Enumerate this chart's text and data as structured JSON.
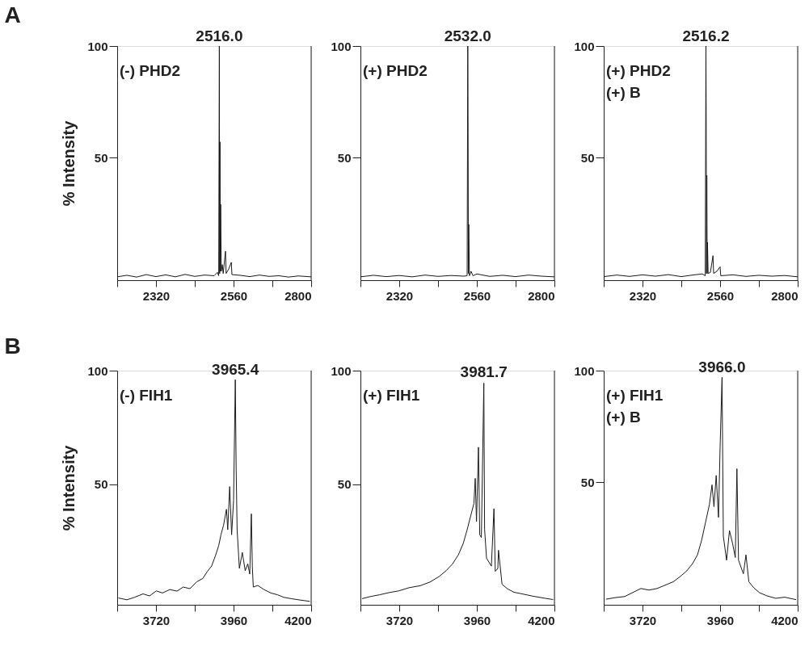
{
  "chart_data": [
    {
      "type": "line",
      "title": "A",
      "ylabel": "% Intensity",
      "xlim": [
        2200,
        2800
      ],
      "ylim": [
        -5,
        100
      ],
      "xticks": [
        {
          "value": 2200,
          "label": null
        },
        2320,
        {
          "value": 2440,
          "label": null
        },
        2560,
        {
          "value": 2680,
          "label": null
        },
        2800
      ],
      "yticks": [
        50,
        100
      ],
      "annotations": [
        "(-) PHD2",
        {
          "text": "2516.0",
          "x": 2516.0,
          "y": 100
        }
      ],
      "series": [
        {
          "color": "#1a1a1a",
          "x": [
            2200,
            2230,
            2260,
            2290,
            2320,
            2350,
            2380,
            2410,
            2440,
            2470,
            2500,
            2510,
            2514,
            2516.0,
            2517,
            2518,
            2519,
            2520,
            2522,
            2525,
            2528,
            2535,
            2537,
            2545,
            2553,
            2555,
            2580,
            2610,
            2640,
            2670,
            2700,
            2730,
            2760,
            2800
          ],
          "values": [
            -3.5,
            -2.8,
            -3.6,
            -2.5,
            -3.4,
            -2.6,
            -3.5,
            -2.4,
            -3.3,
            -2.7,
            -3,
            -1.5,
            -3,
            100,
            -2,
            57,
            -1,
            29,
            -1,
            2,
            -2,
            8,
            -2,
            0,
            3,
            -2.5,
            -2.8,
            -3.4,
            -2.7,
            -3.3,
            -3,
            -3.6,
            -3.1,
            -3.5
          ]
        }
      ]
    },
    {
      "type": "line",
      "xlim": [
        2200,
        2800
      ],
      "ylim": [
        -5,
        100
      ],
      "xticks": [
        {
          "value": 2200,
          "label": null
        },
        2320,
        {
          "value": 2440,
          "label": null
        },
        2560,
        {
          "value": 2680,
          "label": null
        },
        2800
      ],
      "yticks": [
        50,
        100
      ],
      "annotations": [
        "(+) PHD2",
        {
          "text": "2532.0",
          "x": 2532.0,
          "y": 100
        }
      ],
      "series": [
        {
          "color": "#1a1a1a",
          "x": [
            2200,
            2240,
            2280,
            2320,
            2360,
            2400,
            2440,
            2480,
            2520,
            2530,
            2532.0,
            2533,
            2534,
            2535,
            2537,
            2542,
            2548,
            2560,
            2600,
            2640,
            2680,
            2720,
            2760,
            2800
          ],
          "values": [
            -3.5,
            -2.8,
            -3.4,
            -2.9,
            -3.5,
            -2.7,
            -3.3,
            -2.9,
            -3.2,
            -3,
            100,
            61,
            -2,
            20,
            -3,
            -1,
            -3,
            -2.2,
            -3.3,
            -2.8,
            -3.4,
            -2.7,
            -3.2,
            -3.5
          ]
        }
      ]
    },
    {
      "type": "line",
      "xlim": [
        2200,
        2800
      ],
      "ylim": [
        -5,
        100
      ],
      "xticks": [
        {
          "value": 2200,
          "label": null
        },
        2320,
        {
          "value": 2440,
          "label": null
        },
        2560,
        {
          "value": 2680,
          "label": null
        },
        2800
      ],
      "yticks": [
        50,
        100
      ],
      "annotations": [
        "(+) PHD2",
        "(+) B",
        {
          "text": "2516.2",
          "x": 2516.2,
          "y": 100
        }
      ],
      "series": [
        {
          "color": "#1a1a1a",
          "x": [
            2200,
            2240,
            2280,
            2320,
            2360,
            2400,
            2440,
            2480,
            2505,
            2514,
            2516.2,
            2517,
            2518,
            2519,
            2520,
            2521,
            2523,
            2530,
            2538,
            2540,
            2550,
            2560,
            2562,
            2600,
            2640,
            2680,
            2720,
            2760,
            2800
          ],
          "values": [
            -3.4,
            -2.7,
            -3.3,
            -2.6,
            -3.2,
            -2.5,
            -3.4,
            -2.6,
            -2.2,
            -3,
            100,
            68,
            -2,
            42,
            -2,
            12,
            -2,
            -1.5,
            6,
            -2,
            -1,
            1,
            -3,
            -2.6,
            -3.3,
            -2.8,
            -3.2,
            -2.9,
            -3.5
          ]
        }
      ]
    },
    {
      "type": "line",
      "title": "B",
      "ylabel": "% Intensity",
      "xlim": [
        3600,
        4200
      ],
      "ylim": [
        -3,
        100
      ],
      "xticks": [
        {
          "value": 3600,
          "label": null
        },
        3720,
        {
          "value": 3840,
          "label": null
        },
        3960,
        {
          "value": 4080,
          "label": null
        },
        4200
      ],
      "yticks": [
        50,
        100
      ],
      "annotations": [
        "(-) FIH1",
        {
          "text": "3965.4",
          "x": 3965.4,
          "y": 96
        }
      ],
      "series": [
        {
          "color": "#1a1a1a",
          "x": [
            3604,
            3630,
            3654,
            3680,
            3700,
            3721,
            3740,
            3763,
            3785,
            3804,
            3825,
            3846,
            3865,
            3879,
            3892,
            3904,
            3914,
            3921,
            3929,
            3938,
            3942,
            3948,
            3954,
            3960,
            3965.4,
            3968,
            3971,
            3978,
            3987,
            3996,
            4004,
            4010,
            4015,
            4018,
            4021,
            4035,
            4054,
            4075,
            4096,
            4115,
            4138,
            4165,
            4196
          ],
          "values": [
            0,
            -0.8,
            0.3,
            1.8,
            0.9,
            3.1,
            2.2,
            3.7,
            3,
            4.8,
            4.1,
            7.1,
            8.6,
            11.7,
            14,
            18.6,
            23,
            27.8,
            32,
            39,
            30,
            49,
            27.8,
            43,
            96,
            57,
            30,
            13,
            20,
            12,
            15,
            10.5,
            37,
            14,
            4.8,
            5.5,
            3.7,
            2.2,
            1.4,
            0.3,
            -0.3,
            -0.9,
            -1.5
          ]
        }
      ]
    },
    {
      "type": "line",
      "xlim": [
        3600,
        4200
      ],
      "ylim": [
        -3,
        100
      ],
      "xticks": [
        {
          "value": 3600,
          "label": null
        },
        3720,
        {
          "value": 3840,
          "label": null
        },
        3960,
        {
          "value": 4080,
          "label": null
        },
        4200
      ],
      "yticks": [
        50,
        100
      ],
      "annotations": [
        "(+) FIH1",
        {
          "text": "3981.7",
          "x": 3981.7,
          "y": 95
        }
      ],
      "series": [
        {
          "color": "#1a1a1a",
          "x": [
            3605,
            3630,
            3659,
            3690,
            3718,
            3750,
            3785,
            3815,
            3843,
            3865,
            3885,
            3903,
            3918,
            3930,
            3939,
            3951,
            3955,
            3959,
            3965,
            3969,
            3974,
            3981.7,
            3984,
            3990,
            4005,
            4013,
            4017,
            4025,
            4027,
            4038,
            4055,
            4075,
            4100,
            4133,
            4165,
            4196
          ],
          "values": [
            -0.3,
            0.6,
            1.4,
            2.4,
            3.1,
            4.5,
            5.4,
            7,
            9.4,
            12,
            15,
            19,
            24,
            30,
            35,
            41.6,
            52.6,
            33.6,
            66.3,
            27.8,
            26.6,
            94.5,
            30.3,
            17.5,
            14,
            39.3,
            11.7,
            13,
            21,
            6,
            4,
            2.5,
            1.8,
            0.8,
            0,
            -0.7
          ]
        }
      ]
    },
    {
      "type": "line",
      "xlim": [
        3600,
        4200
      ],
      "ylim": [
        -5,
        100
      ],
      "xticks": [
        {
          "value": 3600,
          "label": null
        },
        3720,
        {
          "value": 3840,
          "label": null
        },
        3960,
        {
          "value": 4080,
          "label": null
        },
        4200
      ],
      "yticks": [
        50,
        100
      ],
      "annotations": [
        "(+) FIH1",
        "(+) B",
        {
          "text": "3966.0",
          "x": 3966.0,
          "y": 97
        }
      ],
      "series": [
        {
          "color": "#1a1a1a",
          "x": [
            3607,
            3635,
            3665,
            3690,
            3715,
            3740,
            3765,
            3790,
            3815,
            3835,
            3857,
            3875,
            3890,
            3903,
            3915,
            3927,
            3935,
            3941,
            3948,
            3955,
            3960,
            3966.0,
            3970,
            3980,
            3989,
            3999,
            4007,
            4012,
            4017,
            4032,
            4040,
            4049,
            4065,
            4082,
            4105,
            4132,
            4160,
            4195
          ],
          "values": [
            -2.5,
            -1.8,
            -1.3,
            0.5,
            2.3,
            1.6,
            2.3,
            3.8,
            5.3,
            7.5,
            10.2,
            13.5,
            17.4,
            24,
            32,
            40,
            48.8,
            39,
            53,
            34.2,
            65.7,
            97,
            25.8,
            15,
            28.3,
            22.2,
            16.2,
            56,
            15,
            8.9,
            17.4,
            5.3,
            2.5,
            0.4,
            -1,
            -2.1,
            -1.6,
            -2.7
          ]
        }
      ]
    }
  ]
}
